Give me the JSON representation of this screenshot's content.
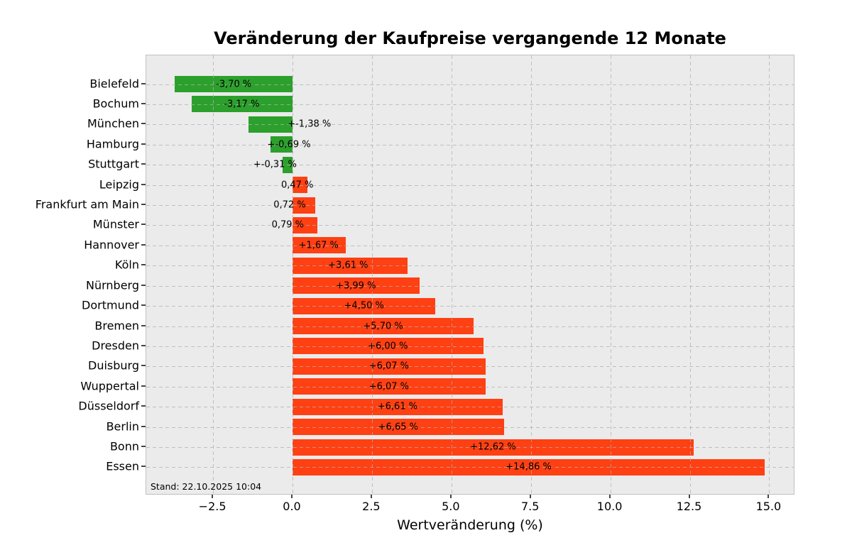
{
  "chart_data": {
    "type": "bar",
    "orientation": "horizontal",
    "title": "Veränderung der Kaufpreise vergangende 12 Monate",
    "xlabel": "Wertveränderung (%)",
    "footnote": "Stand: 22.10.2025 10:04",
    "categories": [
      "Bielefeld",
      "Bochum",
      "München",
      "Hamburg",
      "Stuttgart",
      "Leipzig",
      "Frankfurt am Main",
      "Münster",
      "Hannover",
      "Köln",
      "Nürnberg",
      "Dortmund",
      "Bremen",
      "Dresden",
      "Duisburg",
      "Wuppertal",
      "Düsseldorf",
      "Berlin",
      "Bonn",
      "Essen"
    ],
    "values": [
      -3.7,
      -3.17,
      -1.38,
      -0.69,
      -0.31,
      0.47,
      0.72,
      0.79,
      1.67,
      3.61,
      3.99,
      4.5,
      5.7,
      6.0,
      6.07,
      6.07,
      6.61,
      6.65,
      12.62,
      14.86
    ],
    "bar_labels": [
      "-3,70 %",
      "-3,17 %",
      "+-1,38 %",
      "+-0,69 %",
      "+-0,31 %",
      "0,47 %",
      "0,72 %",
      "0,79 %",
      "+1,67 %",
      "+3,61 %",
      "+3,99 %",
      "+4,50 %",
      "+5,70 %",
      "+6,00 %",
      "+6,07 %",
      "+6,07 %",
      "+6,61 %",
      "+6,65 %",
      "+12,62 %",
      "+14,86 %"
    ],
    "x_ticks": [
      {
        "value": -2.5,
        "label": "−2.5"
      },
      {
        "value": 0.0,
        "label": "0.0"
      },
      {
        "value": 2.5,
        "label": "2.5"
      },
      {
        "value": 5.0,
        "label": "5.0"
      },
      {
        "value": 7.5,
        "label": "7.5"
      },
      {
        "value": 10.0,
        "label": "10.0"
      },
      {
        "value": 12.5,
        "label": "12.5"
      },
      {
        "value": 15.0,
        "label": "15.0"
      }
    ],
    "xlim": [
      -4.6,
      15.82
    ],
    "grid": {
      "style": "dashed",
      "above_bars": true
    },
    "legend": "none",
    "colors": {
      "negative_bar": "#2CA02C",
      "positive_bar": "#FF4012",
      "plot_background": "#EBEBEB",
      "figure_background": "#FFFFFF",
      "grid_line": "#B0B0B0",
      "text": "#000000"
    },
    "label_x_hint_units": [
      -1.85,
      -1.6,
      0.53,
      -0.11,
      -0.55,
      0.15,
      -0.09,
      -0.15,
      0.82,
      1.75,
      1.995,
      2.25,
      2.85,
      3.0,
      3.035,
      3.035,
      3.305,
      3.325,
      6.31,
      7.43
    ]
  }
}
